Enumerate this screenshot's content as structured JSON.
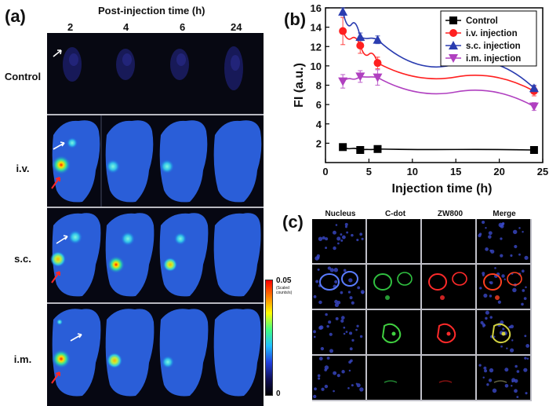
{
  "panel_a": {
    "label": "(a)",
    "header": "Post-injection time (h)",
    "times": [
      "2",
      "4",
      "6",
      "24"
    ],
    "rows": [
      "Control",
      "i.v.",
      "s.c.",
      "i.m."
    ],
    "colorbar": {
      "max": "0.05",
      "unit": "(Scaled counts/s)",
      "min": "0"
    }
  },
  "panel_b": {
    "label": "(b)"
  },
  "panel_c": {
    "label": "(c)",
    "channels": [
      "Nucleus",
      "C-dot",
      "ZW800",
      "Merge"
    ]
  },
  "chart_data": {
    "type": "line",
    "xlabel": "Injection time (h)",
    "ylabel": "FI (a.u.)",
    "xlim": [
      0,
      25
    ],
    "ylim": [
      0,
      16
    ],
    "xticks": [
      "0",
      "5",
      "10",
      "15",
      "20",
      "25"
    ],
    "yticks": [
      "2",
      "4",
      "6",
      "8",
      "10",
      "12",
      "14",
      "16"
    ],
    "legend_position": "top-right",
    "x": [
      2,
      4,
      6,
      24
    ],
    "series": [
      {
        "name": "Control",
        "color": "#000000",
        "marker": "square",
        "values": [
          1.6,
          1.3,
          1.4,
          1.3
        ],
        "errors": [
          0.1,
          0.1,
          0.1,
          0.1
        ]
      },
      {
        "name": "i.v. injection",
        "color": "#ff2020",
        "marker": "circle",
        "values": [
          13.6,
          12.1,
          10.3,
          7.4
        ],
        "errors": [
          1.4,
          0.8,
          0.6,
          0.5
        ]
      },
      {
        "name": "s.c. injection",
        "color": "#2a3cb0",
        "marker": "triangle-up",
        "values": [
          15.6,
          13.0,
          12.7,
          7.7
        ],
        "errors": [
          0.4,
          0.4,
          0.4,
          0.3
        ]
      },
      {
        "name": "i.m. injection",
        "color": "#b040c0",
        "marker": "triangle-down",
        "values": [
          8.4,
          8.9,
          8.8,
          5.8
        ],
        "errors": [
          0.7,
          0.6,
          0.8,
          0.4
        ]
      }
    ]
  }
}
